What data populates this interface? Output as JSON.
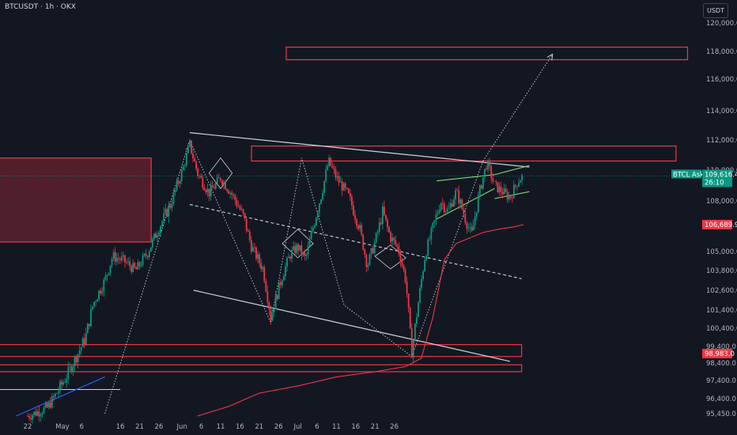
{
  "header": {
    "symbol_line": "BTCUSDT · 1h · OKX",
    "currency": "USDT"
  },
  "chart_data": {
    "type": "candlestick",
    "symbol": "BTCUSDT",
    "interval": "1h",
    "exchange": "OKX",
    "y_axis": {
      "ticks": [
        "120,000.0",
        "118,000.0",
        "116,000.0",
        "114,000.0",
        "112,000.0",
        "110,000.0",
        "108,000.0",
        "106,689.9",
        "105,000.0",
        "103,800.0",
        "102,600.0",
        "101,400.0",
        "100,400.0",
        "99,400.0",
        "98,983.0",
        "98,400.0",
        "97,400.0",
        "96,400.0",
        "95,450.0"
      ],
      "ylim": [
        95000,
        120700
      ]
    },
    "x_axis": {
      "ticks": [
        "22",
        "May",
        "6",
        "16",
        "21",
        "26",
        "Jun",
        "6",
        "11",
        "16",
        "21",
        "26",
        "Jul",
        "6",
        "11",
        "16",
        "21",
        "26"
      ]
    },
    "current_price": {
      "symbol_prefix": "BTCL",
      "side": "Ask",
      "price": "109,616.4",
      "countdown": "26:10",
      "color": "#089981"
    },
    "ma_label": {
      "price": "106,689.9",
      "color": "#f23645"
    },
    "marked_label": {
      "price": "98,983.0",
      "color": "#f23645"
    },
    "price_path": [
      [
        0,
        95300
      ],
      [
        5,
        95800
      ],
      [
        10,
        97600
      ],
      [
        15,
        99900
      ],
      [
        17,
        101800
      ],
      [
        20,
        103200
      ],
      [
        22,
        104700
      ],
      [
        25,
        104400
      ],
      [
        28,
        103800
      ],
      [
        31,
        104900
      ],
      [
        34,
        106500
      ],
      [
        37,
        107800
      ],
      [
        40,
        109900
      ],
      [
        42,
        111700
      ],
      [
        44,
        109800
      ],
      [
        47,
        108500
      ],
      [
        50,
        109500
      ],
      [
        53,
        108400
      ],
      [
        56,
        107100
      ],
      [
        58,
        105300
      ],
      [
        61,
        103900
      ],
      [
        63,
        101000
      ],
      [
        66,
        103500
      ],
      [
        68,
        104800
      ],
      [
        70,
        105300
      ],
      [
        72,
        104500
      ],
      [
        74,
        106600
      ],
      [
        76,
        108300
      ],
      [
        78,
        110600
      ],
      [
        80,
        109500
      ],
      [
        83,
        108400
      ],
      [
        86,
        106500
      ],
      [
        88,
        104100
      ],
      [
        90,
        105600
      ],
      [
        92,
        107400
      ],
      [
        94,
        105900
      ],
      [
        96,
        105200
      ],
      [
        98,
        103200
      ],
      [
        99.5,
        99000
      ],
      [
        101,
        101500
      ],
      [
        103,
        104800
      ],
      [
        105,
        106500
      ],
      [
        107,
        108000
      ],
      [
        109,
        107400
      ],
      [
        111,
        108600
      ],
      [
        113,
        107300
      ],
      [
        115,
        106000
      ],
      [
        117,
        108500
      ],
      [
        119,
        110500
      ],
      [
        121,
        109000
      ],
      [
        123,
        108600
      ],
      [
        125,
        108200
      ],
      [
        127,
        109300
      ],
      [
        128.5,
        109650
      ]
    ],
    "ma_path": [
      [
        44,
        95300
      ],
      [
        52,
        95900
      ],
      [
        60,
        96700
      ],
      [
        70,
        97100
      ],
      [
        80,
        97600
      ],
      [
        90,
        97900
      ],
      [
        98,
        98200
      ],
      [
        102,
        98700
      ],
      [
        105,
        101000
      ],
      [
        108,
        104500
      ],
      [
        111,
        105500
      ],
      [
        114,
        105800
      ],
      [
        118,
        106200
      ],
      [
        122,
        106400
      ],
      [
        126,
        106550
      ],
      [
        128.5,
        106690
      ]
    ],
    "zones": [
      {
        "x": [
          67,
          171
        ],
        "y": [
          117400,
          118300
        ],
        "color": "#f23645"
      },
      {
        "x": [
          58,
          168
        ],
        "y": [
          110600,
          111600
        ],
        "color": "#f23645"
      },
      {
        "x": [
          -11,
          32
        ],
        "y": [
          105600,
          110800
        ],
        "color": "#f23645",
        "filled": true
      },
      {
        "x": [
          -11,
          128
        ],
        "y": [
          98800,
          99500
        ],
        "color": "#f23645"
      },
      {
        "x": [
          -11,
          128
        ],
        "y": [
          97900,
          98300
        ],
        "color": "#f23645"
      }
    ],
    "trendlines": [
      {
        "points": [
          [
            42,
            112500
          ],
          [
            130,
            110200
          ]
        ],
        "color": "#d1d4dc",
        "width": 1.2
      },
      {
        "points": [
          [
            43,
            102600
          ],
          [
            125,
            98500
          ]
        ],
        "color": "#d1d4dc",
        "width": 1.2
      },
      {
        "points": [
          [
            42,
            107800
          ],
          [
            128,
            103300
          ]
        ],
        "color": "#d1d4dc",
        "width": 1.1,
        "dashed": true
      },
      {
        "points": [
          [
            -11,
            96900
          ],
          [
            24,
            96900
          ]
        ],
        "color": "#d1d4dc",
        "width": 1.1
      },
      {
        "points": [
          [
            -3,
            95300
          ],
          [
            20,
            97600
          ]
        ],
        "color": "#2962ff",
        "width": 1.2
      },
      {
        "points": [
          [
            106,
            107000
          ],
          [
            121,
            108800
          ]
        ],
        "color": "#7fd86b",
        "width": 1.1
      },
      {
        "points": [
          [
            106,
            109300
          ],
          [
            121,
            109700
          ]
        ],
        "color": "#7fd86b",
        "width": 1.1
      },
      {
        "points": [
          [
            121,
            108150
          ],
          [
            130,
            108600
          ]
        ],
        "color": "#7fd86b",
        "width": 1.1
      },
      {
        "points": [
          [
            121,
            109700
          ],
          [
            130,
            110300
          ]
        ],
        "color": "#7fd86b",
        "width": 1.1
      }
    ],
    "zigzags": [
      {
        "points": [
          [
            20,
            95450
          ],
          [
            42,
            112000
          ],
          [
            63,
            100700
          ],
          [
            71,
            110800
          ],
          [
            82,
            101700
          ],
          [
            99.5,
            98800
          ],
          [
            118,
            110600
          ]
        ],
        "color": "#d1d4dc",
        "width": 0.9,
        "dotted": true
      },
      {
        "points": [
          [
            118,
            110600
          ],
          [
            136,
            117800
          ]
        ],
        "color": "#d1d4dc",
        "width": 0.9,
        "dotted": true,
        "arrow": true
      }
    ]
  }
}
